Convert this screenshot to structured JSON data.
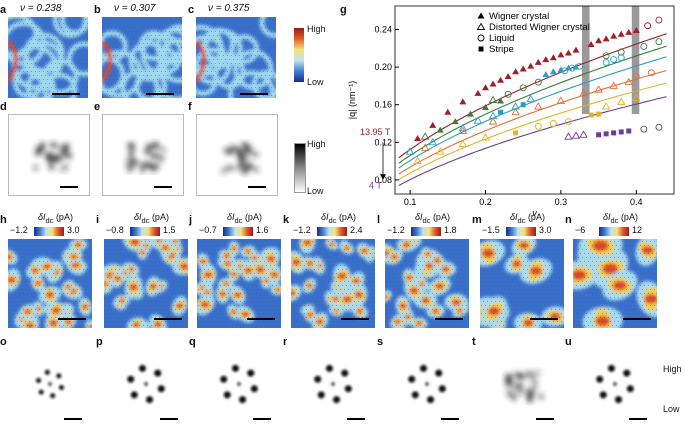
{
  "panels_top": [
    {
      "letter": "a",
      "nu": "ν = 0.238"
    },
    {
      "letter": "b",
      "nu": "ν = 0.307"
    },
    {
      "letter": "c",
      "nu": "ν = 0.375"
    }
  ],
  "panels_fft_top": [
    "d",
    "e",
    "f"
  ],
  "scale_top": {
    "high": "High",
    "low": "Low"
  },
  "scale_fft": {
    "high": "High",
    "low": "Low"
  },
  "panels_bottom": [
    {
      "letter": "h",
      "title": "δI",
      "sub": "dc",
      "unit": " (pA)",
      "min": "−1.2",
      "max": "3.0"
    },
    {
      "letter": "i",
      "title": "δI",
      "sub": "dc",
      "unit": " (pA)",
      "min": "−0.8",
      "max": "1.5"
    },
    {
      "letter": "j",
      "title": "δI",
      "sub": "dc",
      "unit": " (pA)",
      "min": "−0.7",
      "max": "1.6"
    },
    {
      "letter": "k",
      "title": "δI",
      "sub": "dc",
      "unit": " (pA)",
      "min": "−1.2",
      "max": "2.4"
    },
    {
      "letter": "l",
      "title": "δI",
      "sub": "dc",
      "unit": " (pA)",
      "min": "−1.2",
      "max": "1.8"
    },
    {
      "letter": "m",
      "title": "δI",
      "sub": "dc",
      "unit": " (pA)",
      "min": "−1.5",
      "max": "3.0"
    },
    {
      "letter": "n",
      "title": "δI",
      "sub": "dc",
      "unit": " (pA)",
      "min": "−6",
      "max": "12"
    }
  ],
  "panels_fft_bottom": [
    "o",
    "p",
    "q",
    "r",
    "s",
    "t",
    "u"
  ],
  "scale_bottom": {
    "high": "High",
    "low": "Low"
  },
  "chart_data": {
    "letter": "g",
    "type": "scatter",
    "xlabel": "ν",
    "ylabel": "|q| (nm⁻¹)",
    "xlim": [
      0.08,
      0.45
    ],
    "ylim": [
      0.065,
      0.265
    ],
    "xticks": [
      "0.1",
      "0.2",
      "0.3",
      "0.4"
    ],
    "xtick_values": [
      0.1,
      0.2,
      0.3,
      0.4
    ],
    "yticks": [
      "0.08",
      "0.12",
      "0.16",
      "0.20",
      "0.24"
    ],
    "ytick_values": [
      0.08,
      0.12,
      0.16,
      0.2,
      0.24
    ],
    "legend": [
      {
        "marker": "filled-triangle",
        "label": "Wigner crystal"
      },
      {
        "marker": "open-triangle",
        "label": "Distorted Wigner crystal"
      },
      {
        "marker": "open-circle",
        "label": "Liquid"
      },
      {
        "marker": "filled-square",
        "label": "Stripe"
      }
    ],
    "field_labels": {
      "top": "13.95 T",
      "bottom": "4 T"
    },
    "shaded_bands": [
      [
        0.328,
        0.338
      ],
      [
        0.394,
        0.404
      ]
    ],
    "curves": [
      {
        "color": "#a11e2e",
        "k": 0.355
      },
      {
        "color": "#3a7d3a",
        "k": 0.335
      },
      {
        "color": "#2e9cc7",
        "k": 0.318
      },
      {
        "color": "#e3703a",
        "k": 0.296
      },
      {
        "color": "#e3b22a",
        "k": 0.276
      },
      {
        "color": "#6a3d9a",
        "k": 0.254
      }
    ],
    "series": [
      {
        "field_color": "#a11e2e",
        "marker": "filled-triangle",
        "x": [
          0.11,
          0.13,
          0.15,
          0.17,
          0.19,
          0.2,
          0.21,
          0.22,
          0.23,
          0.24,
          0.25,
          0.26,
          0.27,
          0.28,
          0.29,
          0.3,
          0.31,
          0.32,
          0.34,
          0.35,
          0.36,
          0.37,
          0.38,
          0.39,
          0.4
        ],
        "y": [
          0.124,
          0.138,
          0.152,
          0.163,
          0.172,
          0.178,
          0.182,
          0.186,
          0.19,
          0.195,
          0.198,
          0.201,
          0.205,
          0.208,
          0.21,
          0.213,
          0.215,
          0.218,
          0.224,
          0.228,
          0.23,
          0.233,
          0.235,
          0.237,
          0.239
        ]
      },
      {
        "field_color": "#a11e2e",
        "marker": "open-circle",
        "x": [
          0.415,
          0.43
        ],
        "y": [
          0.244,
          0.25
        ]
      },
      {
        "field_color": "#3a7d3a",
        "marker": "filled-triangle",
        "x": [
          0.14,
          0.16,
          0.18,
          0.2,
          0.22
        ],
        "y": [
          0.133,
          0.142,
          0.15,
          0.157,
          0.164
        ]
      },
      {
        "field_color": "#3a7d3a",
        "marker": "open-triangle",
        "x": [
          0.12,
          0.21
        ],
        "y": [
          0.126,
          0.165
        ]
      },
      {
        "field_color": "#3a7d3a",
        "marker": "open-circle",
        "x": [
          0.23,
          0.25,
          0.27,
          0.36,
          0.38,
          0.41,
          0.43
        ],
        "y": [
          0.171,
          0.178,
          0.184,
          0.212,
          0.216,
          0.222,
          0.227
        ]
      },
      {
        "field_color": "#2e9cc7",
        "marker": "open-triangle",
        "x": [
          0.1,
          0.13,
          0.17,
          0.19,
          0.21,
          0.24,
          0.26
        ],
        "y": [
          0.11,
          0.12,
          0.135,
          0.143,
          0.148,
          0.158,
          0.166
        ]
      },
      {
        "field_color": "#2e9cc7",
        "marker": "filled-triangle",
        "x": [
          0.28,
          0.29,
          0.3,
          0.31,
          0.32
        ],
        "y": [
          0.192,
          0.195,
          0.197,
          0.199,
          0.2
        ]
      },
      {
        "field_color": "#2e9cc7",
        "marker": "open-circle",
        "x": [
          0.305,
          0.315,
          0.325,
          0.36,
          0.37,
          0.38
        ],
        "y": [
          0.196,
          0.199,
          0.201,
          0.205,
          0.208,
          0.21
        ]
      },
      {
        "field_color": "#2e9cc7",
        "marker": "filled-square",
        "x": [
          0.22,
          0.25
        ],
        "y": [
          0.152,
          0.16
        ]
      },
      {
        "field_color": "#e3703a",
        "marker": "open-triangle",
        "x": [
          0.12,
          0.17,
          0.21,
          0.24,
          0.27,
          0.3,
          0.33,
          0.35,
          0.37,
          0.39
        ],
        "y": [
          0.114,
          0.132,
          0.142,
          0.152,
          0.158,
          0.164,
          0.172,
          0.176,
          0.18,
          0.184
        ]
      },
      {
        "field_color": "#e3703a",
        "marker": "open-circle",
        "x": [
          0.4,
          0.42
        ],
        "y": [
          0.19,
          0.194
        ]
      },
      {
        "field_color": "#e3b22a",
        "marker": "open-triangle",
        "x": [
          0.11,
          0.14,
          0.17,
          0.2,
          0.36,
          0.38,
          0.4
        ],
        "y": [
          0.1,
          0.11,
          0.118,
          0.125,
          0.158,
          0.163,
          0.167
        ]
      },
      {
        "field_color": "#e3b22a",
        "marker": "open-circle",
        "x": [
          0.27,
          0.29,
          0.31
        ],
        "y": [
          0.137,
          0.14,
          0.142
        ]
      },
      {
        "field_color": "#e3b22a",
        "marker": "filled-square",
        "x": [
          0.24,
          0.34,
          0.35
        ],
        "y": [
          0.13,
          0.149,
          0.15
        ]
      },
      {
        "field_color": "#6a3d9a",
        "marker": "open-triangle",
        "x": [
          0.31,
          0.32,
          0.33
        ],
        "y": [
          0.126,
          0.127,
          0.128
        ]
      },
      {
        "field_color": "#6a3d9a",
        "marker": "filled-square",
        "x": [
          0.35,
          0.36,
          0.37,
          0.38,
          0.39
        ],
        "y": [
          0.128,
          0.129,
          0.13,
          0.131,
          0.132
        ]
      },
      {
        "field_color": "#6a3d9a",
        "marker": "open-circle",
        "x": [
          0.41,
          0.43
        ],
        "y": [
          0.134,
          0.136
        ]
      }
    ]
  }
}
